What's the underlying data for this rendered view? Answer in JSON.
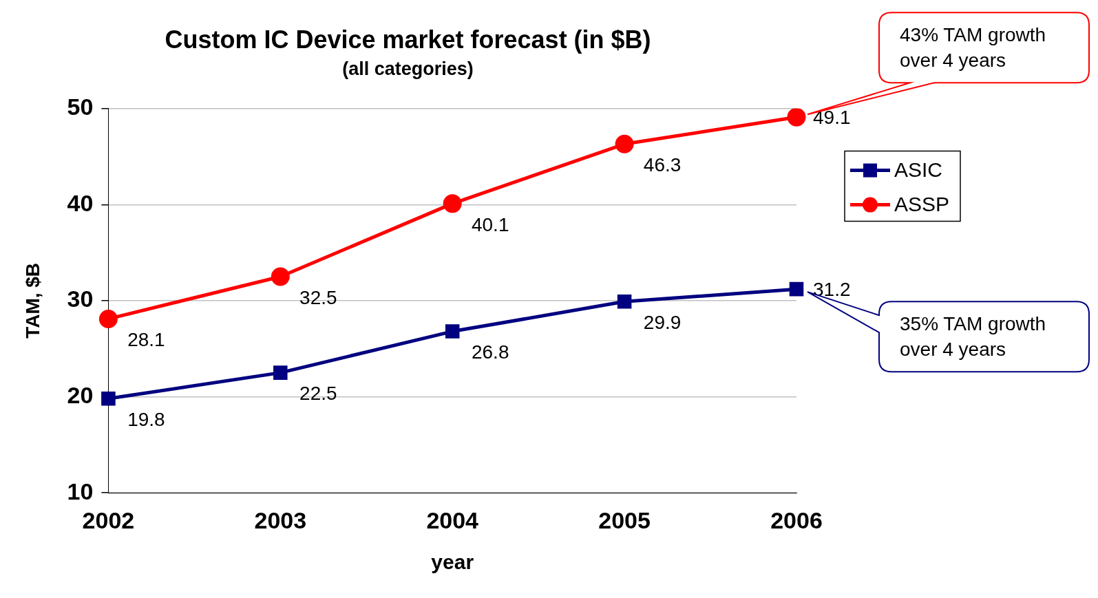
{
  "chart_data": {
    "type": "line",
    "title": "Custom IC Device market forecast (in $B)",
    "subtitle": "(all categories)",
    "xlabel": "year",
    "ylabel": "TAM, $B",
    "categories": [
      "2002",
      "2003",
      "2004",
      "2005",
      "2006"
    ],
    "series": [
      {
        "name": "ASIC",
        "color": "#000080",
        "marker": "square",
        "values": [
          19.8,
          22.5,
          26.8,
          29.9,
          31.2
        ]
      },
      {
        "name": "ASSP",
        "color": "#ff0000",
        "marker": "circle",
        "values": [
          28.1,
          32.5,
          40.1,
          46.3,
          49.1
        ]
      }
    ],
    "ylim": [
      10,
      50
    ],
    "yticks": [
      10,
      20,
      30,
      40,
      50
    ],
    "grid": "y",
    "legend": "right",
    "data_labels": true,
    "annotations": [
      "43% TAM growth\nover 4 years",
      "35% TAM growth\nover 4 years"
    ]
  }
}
